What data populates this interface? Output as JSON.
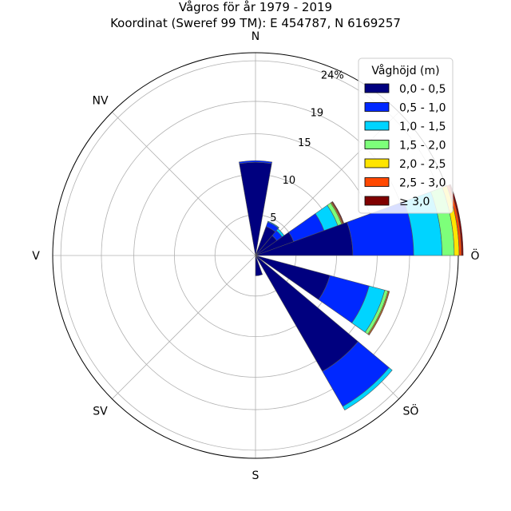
{
  "chart_data": {
    "type": "windrose",
    "title_line1": "Vågros för år 1979 - 2019",
    "title_line2": "Koordinat (Sweref 99 TM): E 454787, N 6169257",
    "direction_labels": [
      "N",
      "NV",
      "V",
      "SV",
      "S",
      "SÖ",
      "Ö"
    ],
    "radial_ticks": [
      "5",
      "10",
      "15",
      "19",
      "24%"
    ],
    "radial_tick_values": [
      5,
      10,
      15,
      19,
      24
    ],
    "rmax": 25,
    "grid": true,
    "legend": {
      "title": "Våghöjd (m)",
      "placement": "top-right",
      "entries": [
        {
          "label": "0,0 - 0,5",
          "color": "#00007f"
        },
        {
          "label": "0,5 - 1,0",
          "color": "#0028ff"
        },
        {
          "label": "1,0 - 1,5",
          "color": "#00d4ff"
        },
        {
          "label": "1,5 - 2,0",
          "color": "#7dff7a"
        },
        {
          "label": "2,0 - 2,5",
          "color": "#ffe500"
        },
        {
          "label": "2,5 - 3,0",
          "color": "#ff4800"
        },
        {
          "label": "≥ 3,0",
          "color": "#7f0000"
        }
      ]
    },
    "sector_width_deg": 20,
    "sectors": [
      {
        "direction_deg": 0,
        "values": [
          11.5,
          0.2,
          0,
          0,
          0,
          0,
          0
        ]
      },
      {
        "direction_deg": 30,
        "values": [
          3.8,
          0.6,
          0.1,
          0,
          0,
          0,
          0
        ]
      },
      {
        "direction_deg": 50,
        "values": [
          3.2,
          0.8,
          0.3,
          0,
          0,
          0,
          0
        ]
      },
      {
        "direction_deg": 65,
        "values": [
          5.0,
          4.0,
          1.8,
          0.5,
          0.1,
          0.1,
          0.1
        ]
      },
      {
        "direction_deg": 80,
        "values": [
          12.0,
          7.5,
          3.5,
          1.5,
          0.6,
          0.3,
          0.2
        ]
      },
      {
        "direction_deg": 115,
        "values": [
          9.5,
          5.0,
          2.0,
          0.4,
          0.1,
          0.1,
          0
        ]
      },
      {
        "direction_deg": 140,
        "values": [
          16.5,
          5.0,
          0.5,
          0,
          0,
          0,
          0
        ]
      },
      {
        "direction_deg": 170,
        "values": [
          2.5,
          0,
          0,
          0,
          0,
          0,
          0
        ]
      }
    ]
  }
}
